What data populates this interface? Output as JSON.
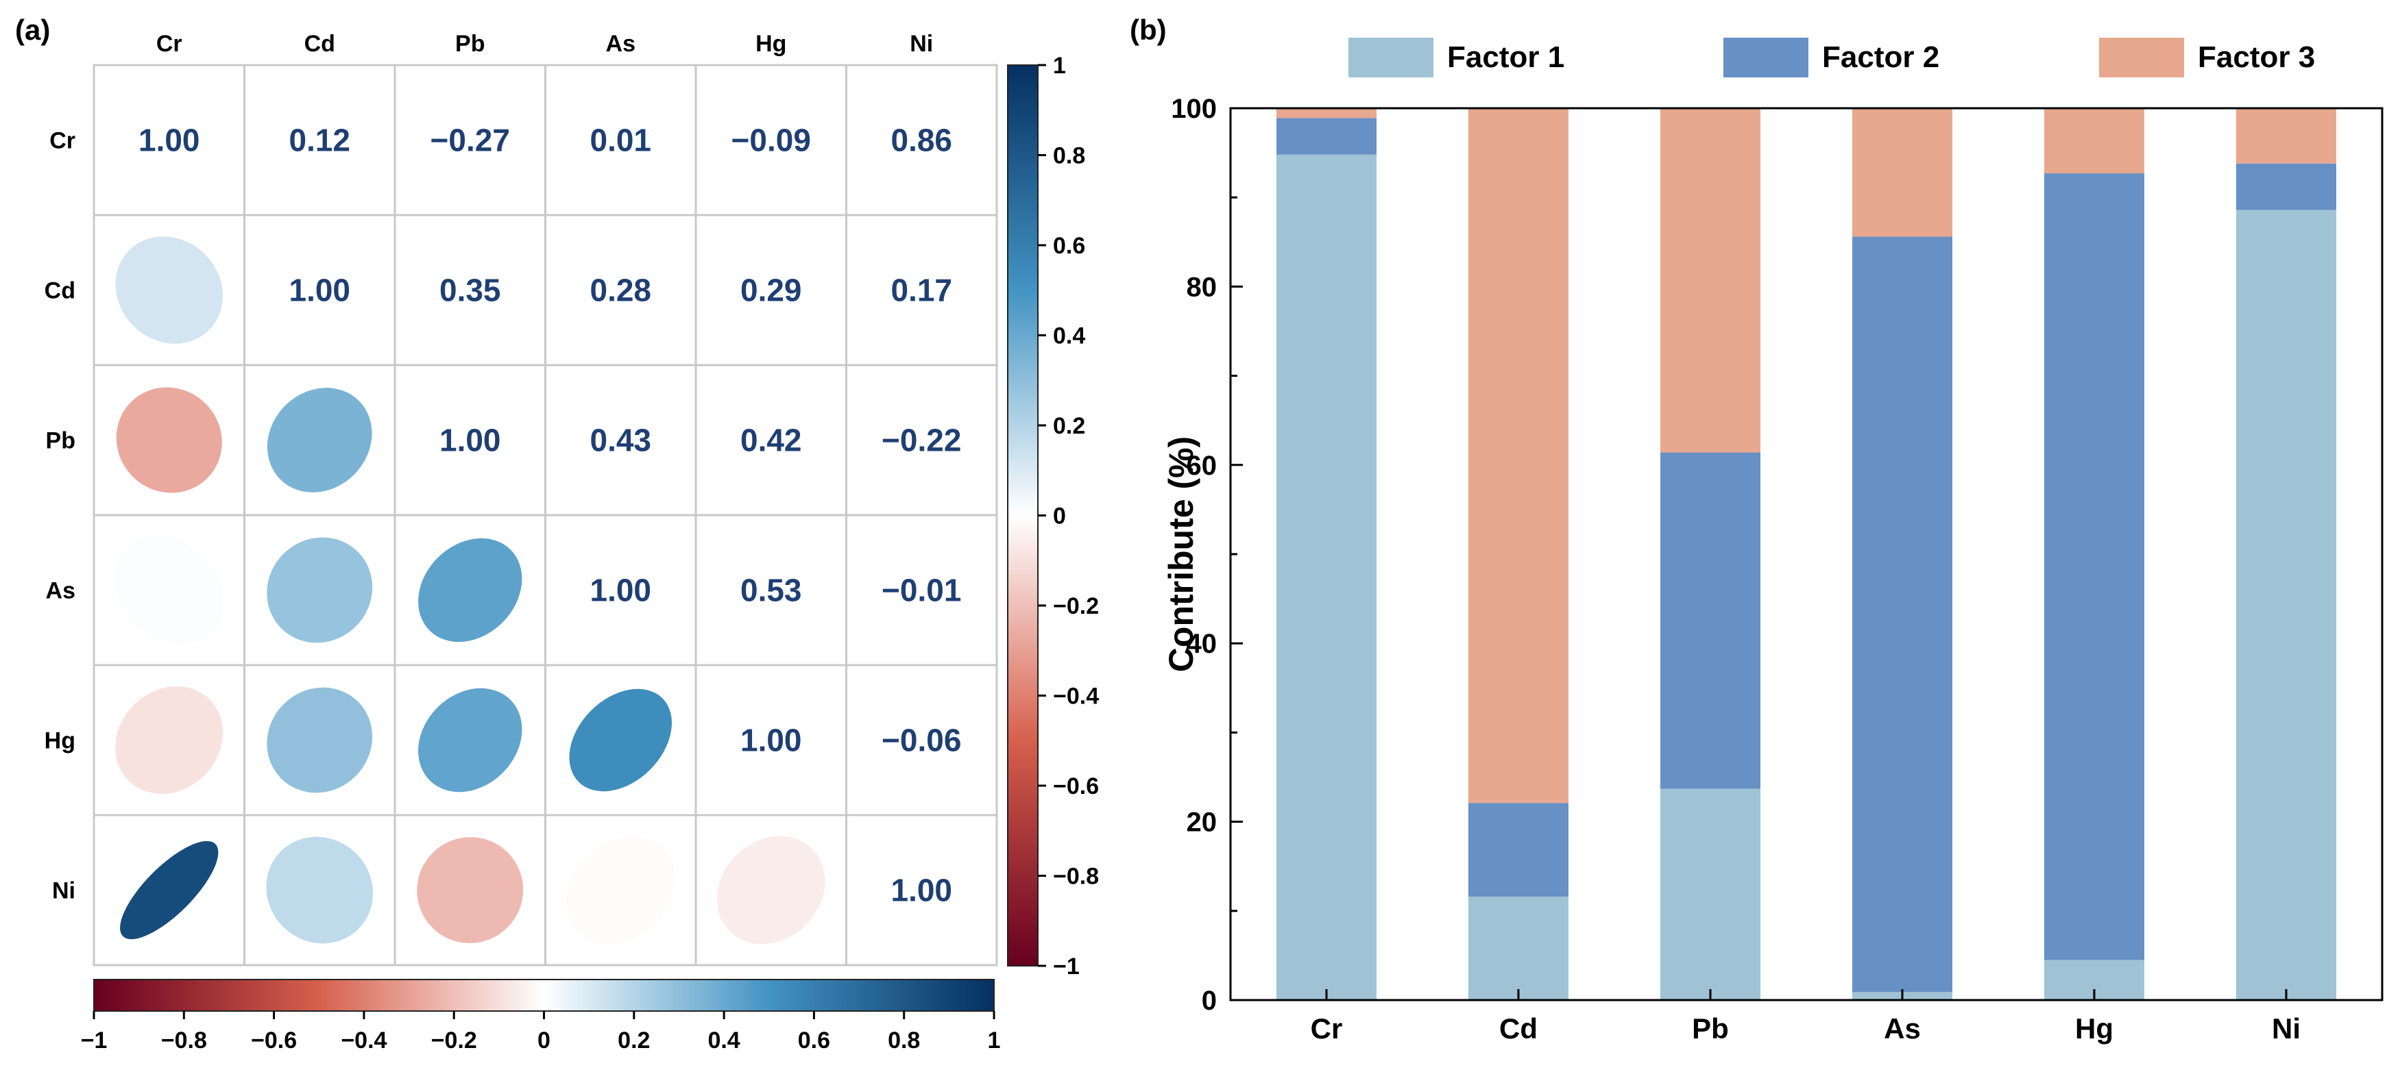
{
  "panel_a_label": "(a)",
  "panel_b_label": "(b)",
  "chart_data": [
    {
      "type": "heatmap",
      "panel": "(a)",
      "variables": [
        "Cr",
        "Cd",
        "Pb",
        "As",
        "Hg",
        "Ni"
      ],
      "matrix": [
        [
          1.0,
          0.12,
          -0.27,
          0.01,
          -0.09,
          0.86
        ],
        [
          0.12,
          1.0,
          0.35,
          0.28,
          0.29,
          0.17
        ],
        [
          -0.27,
          0.35,
          1.0,
          0.43,
          0.42,
          -0.22
        ],
        [
          0.01,
          0.28,
          0.43,
          1.0,
          0.53,
          -0.01
        ],
        [
          -0.09,
          0.29,
          0.42,
          0.53,
          1.0,
          -0.06
        ],
        [
          0.86,
          0.17,
          -0.22,
          -0.01,
          -0.06,
          1.0
        ]
      ],
      "value_labels": [
        [
          "1.00",
          "0.12",
          "−0.27",
          "0.01",
          "−0.09",
          "0.86"
        ],
        [
          "",
          "1.00",
          "0.35",
          "0.28",
          "0.29",
          "0.17"
        ],
        [
          "",
          "",
          "1.00",
          "0.43",
          "0.42",
          "−0.22"
        ],
        [
          "",
          "",
          "",
          "1.00",
          "0.53",
          "−0.01"
        ],
        [
          "",
          "",
          "",
          "",
          "1.00",
          "−0.06"
        ],
        [
          "",
          "",
          "",
          "",
          "",
          "1.00"
        ]
      ],
      "lower_triangle": "ellipses",
      "upper_triangle": "numbers",
      "colorbar": {
        "range": [
          -1,
          1
        ],
        "vertical_ticks": [
          "1",
          "0.8",
          "0.6",
          "0.4",
          "0.2",
          "0",
          "−0.2",
          "−0.4",
          "−0.6",
          "−0.8",
          "−1"
        ],
        "horizontal_ticks": [
          "−1",
          "−0.8",
          "−0.6",
          "−0.4",
          "−0.2",
          "0",
          "0.2",
          "0.4",
          "0.6",
          "0.8",
          "1"
        ],
        "colors": {
          "neg_end": "#67001f",
          "neg_mid": "#d6604d",
          "zero": "#ffffff",
          "pos_mid": "#4393c3",
          "pos_end": "#053061"
        }
      },
      "text_color": "#1f3f73"
    },
    {
      "type": "bar",
      "stacked": true,
      "panel": "(b)",
      "categories": [
        "Cr",
        "Cd",
        "Pb",
        "As",
        "Hg",
        "Ni"
      ],
      "series": [
        {
          "name": "Factor 1",
          "color": "#9fc3d5",
          "values": [
            94.8,
            11.6,
            23.7,
            0.9,
            4.5,
            88.6
          ]
        },
        {
          "name": "Factor 2",
          "color": "#6790c4",
          "values": [
            4.1,
            10.5,
            37.7,
            84.7,
            88.2,
            5.2
          ]
        },
        {
          "name": "Factor 3",
          "color": "#e8a88f",
          "values": [
            1.1,
            77.9,
            38.6,
            14.4,
            7.3,
            6.2
          ]
        }
      ],
      "ylabel": "Contribute (%)",
      "xlabel": "",
      "ylim": [
        0,
        100
      ],
      "yticks": [
        "0",
        "20",
        "40",
        "60",
        "80",
        "100"
      ],
      "legend_position": "top"
    }
  ]
}
